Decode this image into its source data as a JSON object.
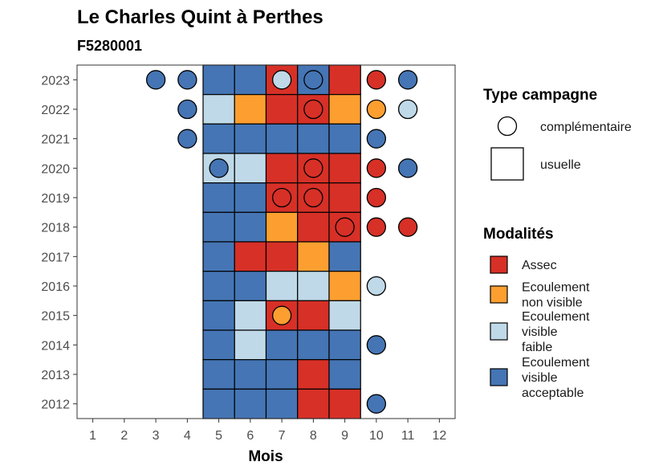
{
  "chart_data": {
    "type": "heatmap",
    "title": "Le Charles Quint à Perthes",
    "subtitle": "F5280001",
    "xlabel": "Mois",
    "ylabel": "",
    "x_ticks": [
      "1",
      "2",
      "3",
      "4",
      "5",
      "6",
      "7",
      "8",
      "9",
      "10",
      "11",
      "12"
    ],
    "y_ticks": [
      "2012",
      "2013",
      "2014",
      "2015",
      "2016",
      "2017",
      "2018",
      "2019",
      "2020",
      "2021",
      "2022",
      "2023"
    ],
    "xlim": [
      0.5,
      12.5
    ],
    "grid": false,
    "legend_position": "right",
    "colors": {
      "Assec": "#d73027",
      "Ecoulement non visible": "#fc9f30",
      "Ecoulement visible faible": "#bfd9e8",
      "Ecoulement visible acceptable": "#4575b4"
    },
    "legend_type": {
      "title": "Type campagne",
      "items": [
        {
          "label": "complémentaire",
          "shape": "circle"
        },
        {
          "label": "usuelle",
          "shape": "square"
        }
      ]
    },
    "legend_modalites": {
      "title": "Modalités",
      "items": [
        {
          "key": "Assec",
          "lines": [
            "Assec"
          ]
        },
        {
          "key": "Ecoulement non visible",
          "lines": [
            "Ecoulement",
            "non visible"
          ]
        },
        {
          "key": "Ecoulement visible faible",
          "lines": [
            "Ecoulement",
            "visible",
            "faible"
          ]
        },
        {
          "key": "Ecoulement visible acceptable",
          "lines": [
            "Ecoulement",
            "visible",
            "acceptable"
          ]
        }
      ]
    },
    "usuelle": [
      {
        "year": "2023",
        "values": [
          "Ecoulement visible acceptable",
          "Ecoulement visible acceptable",
          "Assec",
          "Ecoulement visible acceptable",
          "Assec"
        ]
      },
      {
        "year": "2022",
        "values": [
          "Ecoulement visible faible",
          "Ecoulement non visible",
          "Assec",
          "Assec",
          "Ecoulement non visible"
        ]
      },
      {
        "year": "2021",
        "values": [
          "Ecoulement visible acceptable",
          "Ecoulement visible acceptable",
          "Ecoulement visible acceptable",
          "Ecoulement visible acceptable",
          "Ecoulement visible acceptable"
        ]
      },
      {
        "year": "2020",
        "values": [
          "Ecoulement visible faible",
          "Ecoulement visible faible",
          "Assec",
          "Assec",
          "Assec"
        ]
      },
      {
        "year": "2019",
        "values": [
          "Ecoulement visible acceptable",
          "Ecoulement visible acceptable",
          "Assec",
          "Assec",
          "Assec"
        ]
      },
      {
        "year": "2018",
        "values": [
          "Ecoulement visible acceptable",
          "Ecoulement visible acceptable",
          "Ecoulement non visible",
          "Assec",
          "Assec"
        ]
      },
      {
        "year": "2017",
        "values": [
          "Ecoulement visible acceptable",
          "Assec",
          "Assec",
          "Ecoulement non visible",
          "Ecoulement visible acceptable"
        ]
      },
      {
        "year": "2016",
        "values": [
          "Ecoulement visible acceptable",
          "Ecoulement visible acceptable",
          "Ecoulement visible faible",
          "Ecoulement visible faible",
          "Ecoulement non visible"
        ]
      },
      {
        "year": "2015",
        "values": [
          "Ecoulement visible acceptable",
          "Ecoulement visible faible",
          "Assec",
          "Assec",
          "Ecoulement visible faible"
        ]
      },
      {
        "year": "2014",
        "values": [
          "Ecoulement visible acceptable",
          "Ecoulement visible faible",
          "Ecoulement visible acceptable",
          "Ecoulement visible acceptable",
          "Ecoulement visible acceptable"
        ]
      },
      {
        "year": "2013",
        "values": [
          "Ecoulement visible acceptable",
          "Ecoulement visible acceptable",
          "Ecoulement visible acceptable",
          "Assec",
          "Ecoulement visible acceptable"
        ]
      },
      {
        "year": "2012",
        "values": [
          "Ecoulement visible acceptable",
          "Ecoulement visible acceptable",
          "Ecoulement visible acceptable",
          "Assec",
          "Assec"
        ]
      }
    ],
    "usuelle_months": [
      5,
      6,
      7,
      8,
      9
    ],
    "complementaire": [
      {
        "year": "2023",
        "month": 3,
        "value": "Ecoulement visible acceptable"
      },
      {
        "year": "2023",
        "month": 4,
        "value": "Ecoulement visible acceptable"
      },
      {
        "year": "2023",
        "month": 7,
        "value": "Ecoulement visible faible"
      },
      {
        "year": "2023",
        "month": 8,
        "value": "Ecoulement visible acceptable"
      },
      {
        "year": "2023",
        "month": 10,
        "value": "Assec"
      },
      {
        "year": "2023",
        "month": 11,
        "value": "Ecoulement visible acceptable"
      },
      {
        "year": "2022",
        "month": 4,
        "value": "Ecoulement visible acceptable"
      },
      {
        "year": "2022",
        "month": 8,
        "value": "Assec"
      },
      {
        "year": "2022",
        "month": 10,
        "value": "Ecoulement non visible"
      },
      {
        "year": "2022",
        "month": 11,
        "value": "Ecoulement visible faible"
      },
      {
        "year": "2021",
        "month": 4,
        "value": "Ecoulement visible acceptable"
      },
      {
        "year": "2021",
        "month": 10,
        "value": "Ecoulement visible acceptable"
      },
      {
        "year": "2020",
        "month": 5,
        "value": "Ecoulement visible acceptable"
      },
      {
        "year": "2020",
        "month": 8,
        "value": "Assec"
      },
      {
        "year": "2020",
        "month": 10,
        "value": "Assec"
      },
      {
        "year": "2020",
        "month": 11,
        "value": "Ecoulement visible acceptable"
      },
      {
        "year": "2019",
        "month": 7,
        "value": "Assec"
      },
      {
        "year": "2019",
        "month": 8,
        "value": "Assec"
      },
      {
        "year": "2019",
        "month": 10,
        "value": "Assec"
      },
      {
        "year": "2018",
        "month": 9,
        "value": "Assec"
      },
      {
        "year": "2018",
        "month": 10,
        "value": "Assec"
      },
      {
        "year": "2018",
        "month": 11,
        "value": "Assec"
      },
      {
        "year": "2016",
        "month": 10,
        "value": "Ecoulement visible faible"
      },
      {
        "year": "2015",
        "month": 7,
        "value": "Ecoulement non visible"
      },
      {
        "year": "2014",
        "month": 10,
        "value": "Ecoulement visible acceptable"
      },
      {
        "year": "2012",
        "month": 10,
        "value": "Ecoulement visible acceptable"
      }
    ]
  }
}
